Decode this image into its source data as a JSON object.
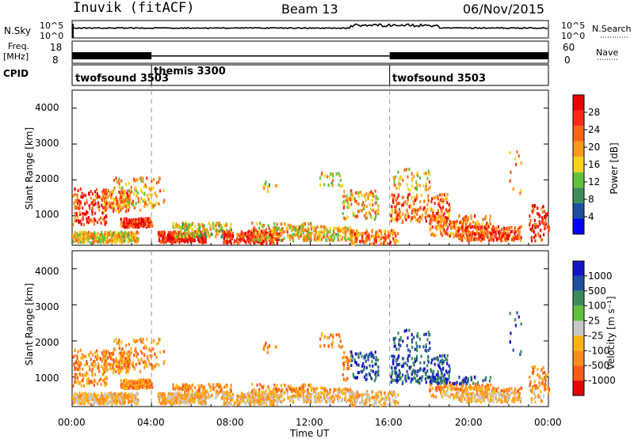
{
  "header": {
    "station": "Inuvik (fitACF)",
    "beam": "Beam 13",
    "date": "06/Nov/2015"
  },
  "strips": {
    "nsky_label": "N.Sky",
    "nsky_ticks": [
      "10^5",
      "10^0"
    ],
    "nsearch_label": "N.Search",
    "freq_label_top": "Freq.",
    "freq_label_bottom": "[MHz]",
    "freq_ticks": [
      "18",
      "8"
    ],
    "nave_ticks": [
      "60",
      "0"
    ],
    "nave_label": "Nave",
    "cpid_label": "CPID",
    "cpid_segments": [
      {
        "name": "twofsound 3503",
        "start_h": 0,
        "end_h": 4
      },
      {
        "name": "themis 3300",
        "start_h": 4,
        "end_h": 16
      },
      {
        "name": "twofsound 3503",
        "start_h": 16,
        "end_h": 24
      }
    ]
  },
  "colors": {
    "power": [
      "#0000ff",
      "#1e4fa0",
      "#3c8c5a",
      "#61c23a",
      "#f7d21a",
      "#ff9a1a",
      "#ff6414",
      "#ff2a14",
      "#e60000"
    ],
    "velocity": [
      "#e60000",
      "#ff5a14",
      "#ff8c1e",
      "#ffb414",
      "#c8c8c8",
      "#61c23a",
      "#3c8c5a",
      "#1e4fa0",
      "#1414c8"
    ]
  },
  "chart_data": [
    {
      "type": "heatmap",
      "title": "",
      "parameter": "Power",
      "ylabel": "Slant Range [km]",
      "yticks": [
        "1000",
        "2000",
        "3000",
        "4000"
      ],
      "ylim": [
        180,
        4500
      ],
      "xlim": [
        0,
        24
      ],
      "colorbar_label": "Power [dB]",
      "colorbar_ticks": [
        "4",
        "8",
        "12",
        "16",
        "20",
        "24",
        "28"
      ],
      "colorbar_range": [
        0,
        30
      ]
    },
    {
      "type": "heatmap",
      "title": "",
      "parameter": "Velocity",
      "ylabel": "Slant Range [km]",
      "yticks": [
        "1000",
        "2000",
        "3000",
        "4000"
      ],
      "ylim": [
        180,
        4500
      ],
      "xlim": [
        0,
        24
      ],
      "xlabel": "Time UT",
      "xticks": [
        "00:00",
        "04:00",
        "08:00",
        "12:00",
        "16:00",
        "20:00",
        "00:00"
      ],
      "colorbar_label": "Velocity [m s⁻¹]",
      "colorbar_ticks": [
        "1000",
        "500",
        "100",
        "25",
        "-25",
        "-100",
        "-500",
        "-1000"
      ],
      "colorbar_range": [
        -1000,
        1000
      ]
    }
  ]
}
